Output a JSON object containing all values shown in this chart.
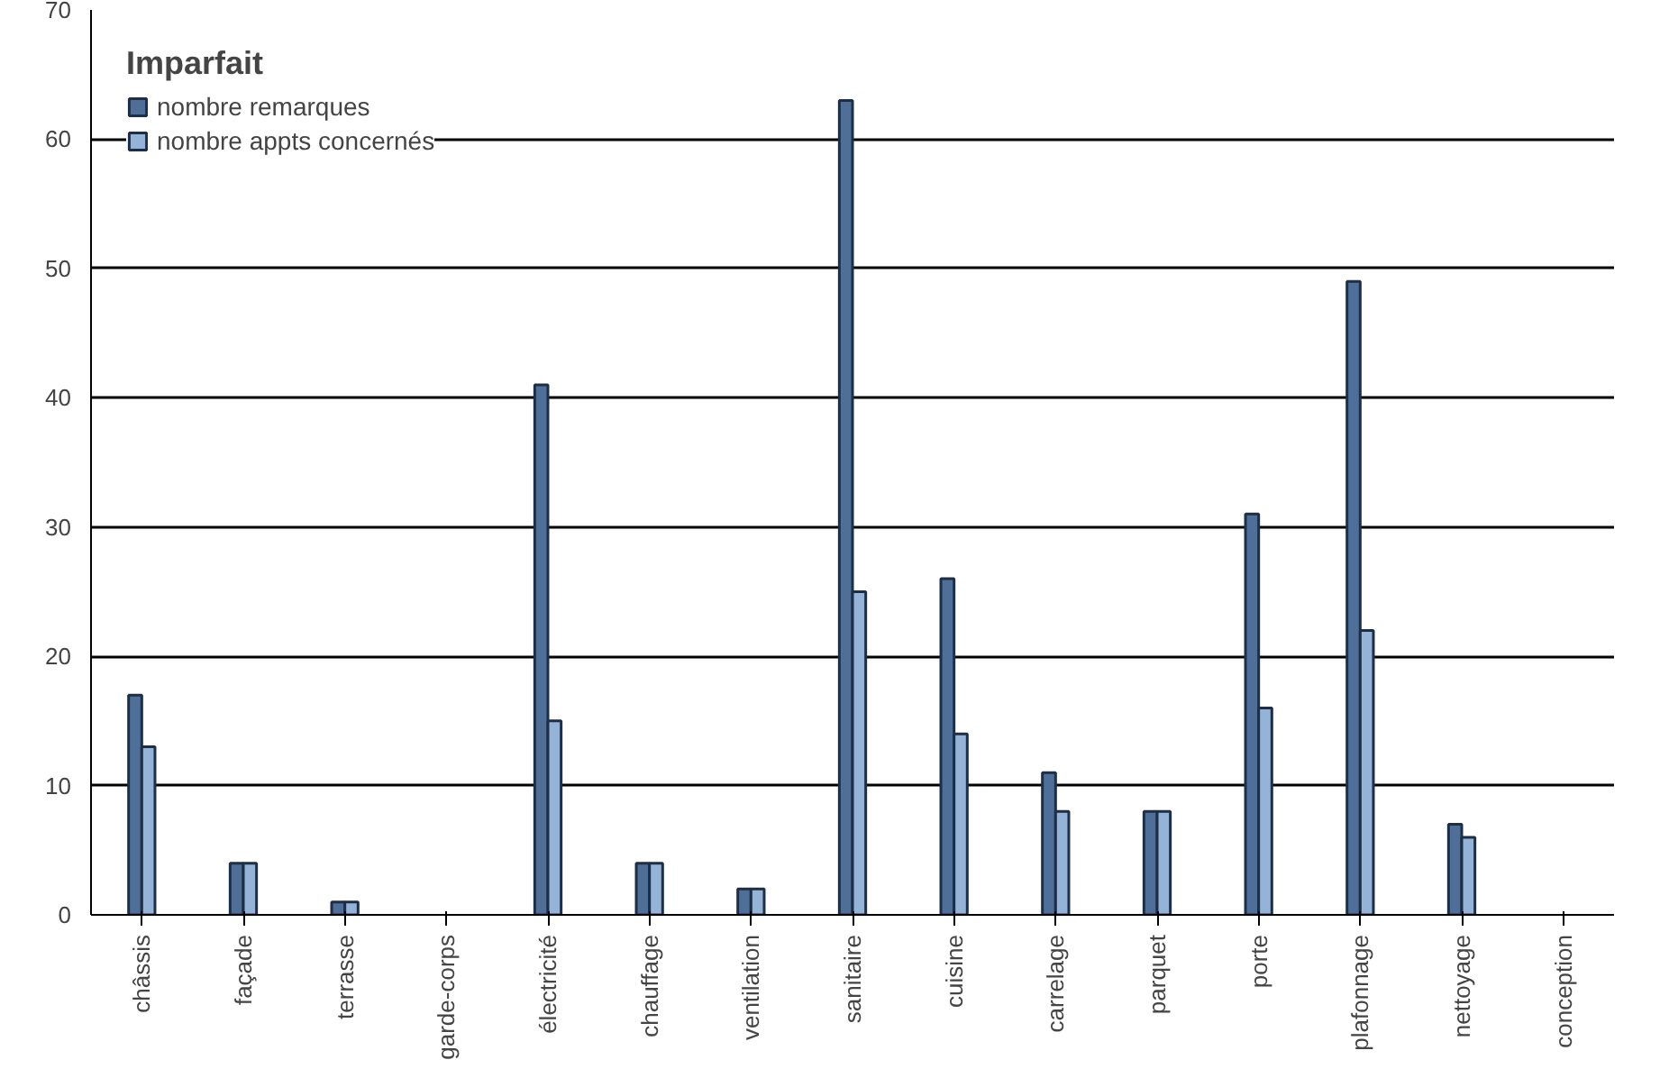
{
  "chart_data": {
    "type": "bar",
    "legend_title": "Imparfait",
    "categories": [
      "châssis",
      "façade",
      "terrasse",
      "garde-corps",
      "électricité",
      "chauffage",
      "ventilation",
      "sanitaire",
      "cuisine",
      "carrelage",
      "parquet",
      "porte",
      "plafonnage",
      "nettoyage",
      "conception"
    ],
    "series": [
      {
        "name": "nombre remarques",
        "color": "#4f6f98",
        "values": [
          17,
          4,
          1,
          0,
          41,
          4,
          2,
          63,
          26,
          11,
          8,
          31,
          49,
          7,
          0
        ]
      },
      {
        "name": "nombre appts concernés",
        "color": "#95b3d7",
        "values": [
          13,
          4,
          1,
          0,
          15,
          4,
          2,
          25,
          14,
          8,
          8,
          16,
          22,
          6,
          0
        ]
      }
    ],
    "ylim": [
      0,
      70
    ],
    "yticks": [
      0,
      10,
      20,
      30,
      40,
      50,
      60,
      70
    ],
    "grid": "y",
    "legend": "top left"
  }
}
